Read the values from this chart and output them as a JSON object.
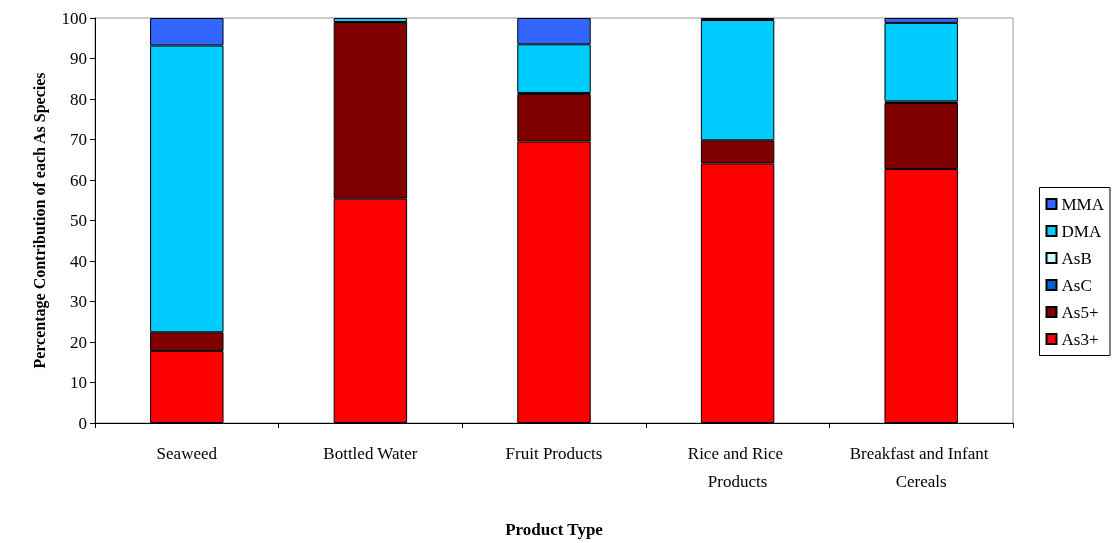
{
  "chart_data": {
    "type": "bar",
    "stacked": true,
    "xlabel": "Product Type",
    "ylabel": "Percentage Contribution of each As Species",
    "categories": [
      "Seaweed",
      "Bottled Water",
      "Fruit Products",
      "Rice and Rice Products",
      "Breakfast and Infant Cereals"
    ],
    "series": [
      {
        "name": "As3+",
        "color": "#ff0000",
        "values": [
          17.8,
          55.4,
          69.5,
          64.1,
          62.7
        ]
      },
      {
        "name": "As5+",
        "color": "#800000",
        "values": [
          4.6,
          43.6,
          11.7,
          5.7,
          16.3
        ]
      },
      {
        "name": "AsC",
        "color": "#0066cc",
        "values": [
          0,
          0,
          0.3,
          null,
          0.4
        ]
      },
      {
        "name": "AsB",
        "color": "#ccffff",
        "values": [
          0,
          0,
          0,
          0,
          0
        ]
      },
      {
        "name": "DMA",
        "color": "#00ccff",
        "values": [
          70.8,
          1.0,
          12.0,
          29.7,
          19.4
        ]
      },
      {
        "name": "MMA",
        "color": "#3366ff",
        "values": [
          6.8,
          0,
          6.5,
          0.5,
          1.2
        ]
      }
    ],
    "ylim": [
      0,
      100
    ],
    "yticks": [
      0,
      10,
      20,
      30,
      40,
      50,
      60,
      70,
      80,
      90,
      100
    ],
    "grid": false,
    "legend": "right"
  }
}
